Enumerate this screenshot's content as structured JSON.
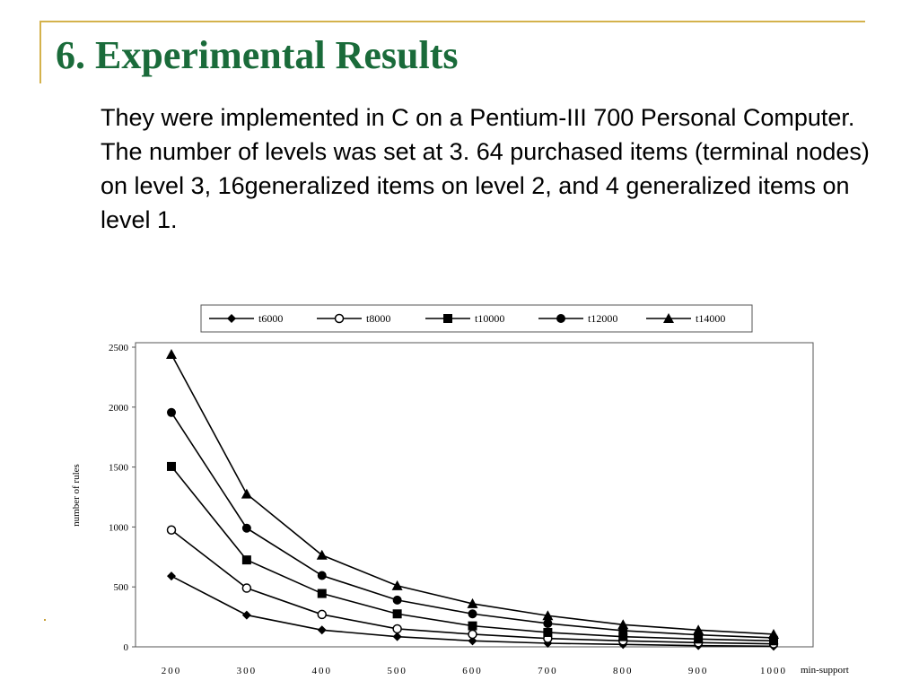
{
  "slide": {
    "title": "6. Experimental Results",
    "paragraphs": [
      "They were implemented in C on a Pentium-III 700 Personal Computer.",
      "The number of levels was set at 3. 64 purchased items (terminal nodes) on level 3, 16generalized items on level 2, and 4 generalized items on level 1."
    ],
    "accent_color": "#d4b24c",
    "title_color": "#1a6b3a"
  },
  "chart_data": {
    "type": "line",
    "title": "",
    "xlabel": "min-support",
    "ylabel": "number of rules",
    "x": [
      200,
      300,
      400,
      500,
      600,
      700,
      800,
      900,
      1000
    ],
    "xlim": [
      200,
      1000
    ],
    "ylim": [
      0,
      2500
    ],
    "yticks": [
      0,
      500,
      1000,
      1500,
      2000,
      2500
    ],
    "grid": false,
    "legend_position": "top",
    "series": [
      {
        "name": "t6000",
        "marker": "diamond",
        "values": [
          590,
          265,
          140,
          85,
          50,
          30,
          20,
          10,
          5
        ]
      },
      {
        "name": "t8000",
        "marker": "circle-open",
        "values": [
          975,
          490,
          270,
          150,
          105,
          70,
          50,
          35,
          25
        ]
      },
      {
        "name": "t10000",
        "marker": "square",
        "values": [
          1505,
          725,
          445,
          275,
          175,
          120,
          85,
          65,
          50
        ]
      },
      {
        "name": "t12000",
        "marker": "circle",
        "values": [
          1955,
          990,
          595,
          390,
          275,
          195,
          135,
          100,
          75
        ]
      },
      {
        "name": "t14000",
        "marker": "triangle",
        "values": [
          2440,
          1275,
          765,
          510,
          360,
          260,
          185,
          140,
          105
        ]
      }
    ]
  }
}
